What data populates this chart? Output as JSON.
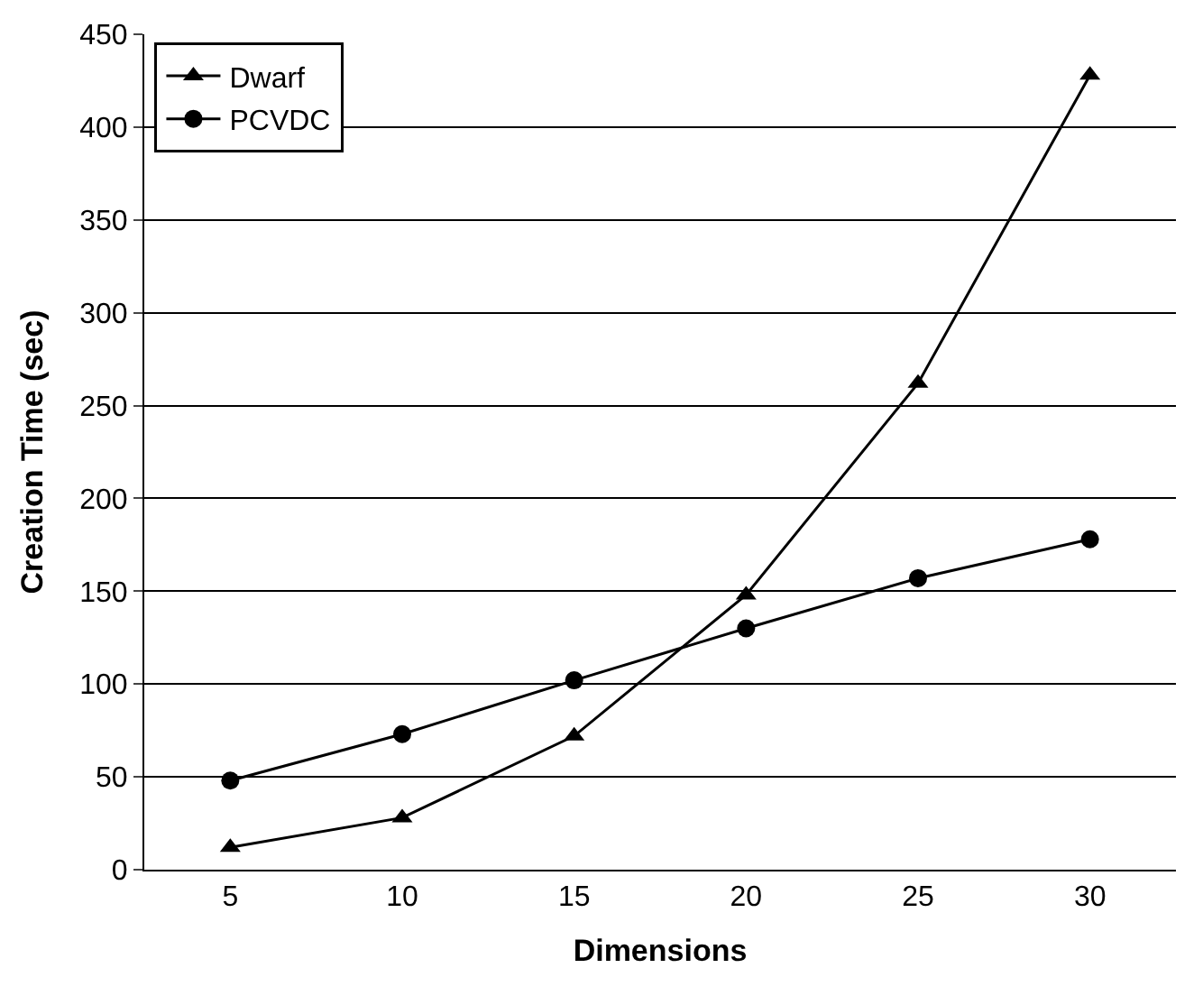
{
  "chart_data": {
    "type": "line",
    "xlabel": "Dimensions",
    "ylabel": "Creation Time (sec)",
    "categories": [
      "5",
      "10",
      "15",
      "20",
      "25",
      "30"
    ],
    "series": [
      {
        "name": "Dwarf",
        "color": "#000000",
        "marker": "triangle",
        "values": [
          12,
          28,
          72,
          148,
          262,
          428
        ]
      },
      {
        "name": "PCVDC",
        "color": "#000000",
        "marker": "circle",
        "values": [
          48,
          73,
          102,
          130,
          157,
          178
        ]
      }
    ],
    "ylim": [
      0,
      450
    ],
    "yticks": [
      0,
      50,
      100,
      150,
      200,
      250,
      300,
      350,
      400,
      450
    ],
    "grid": "y",
    "legend": "top left",
    "line_style": "solid"
  }
}
